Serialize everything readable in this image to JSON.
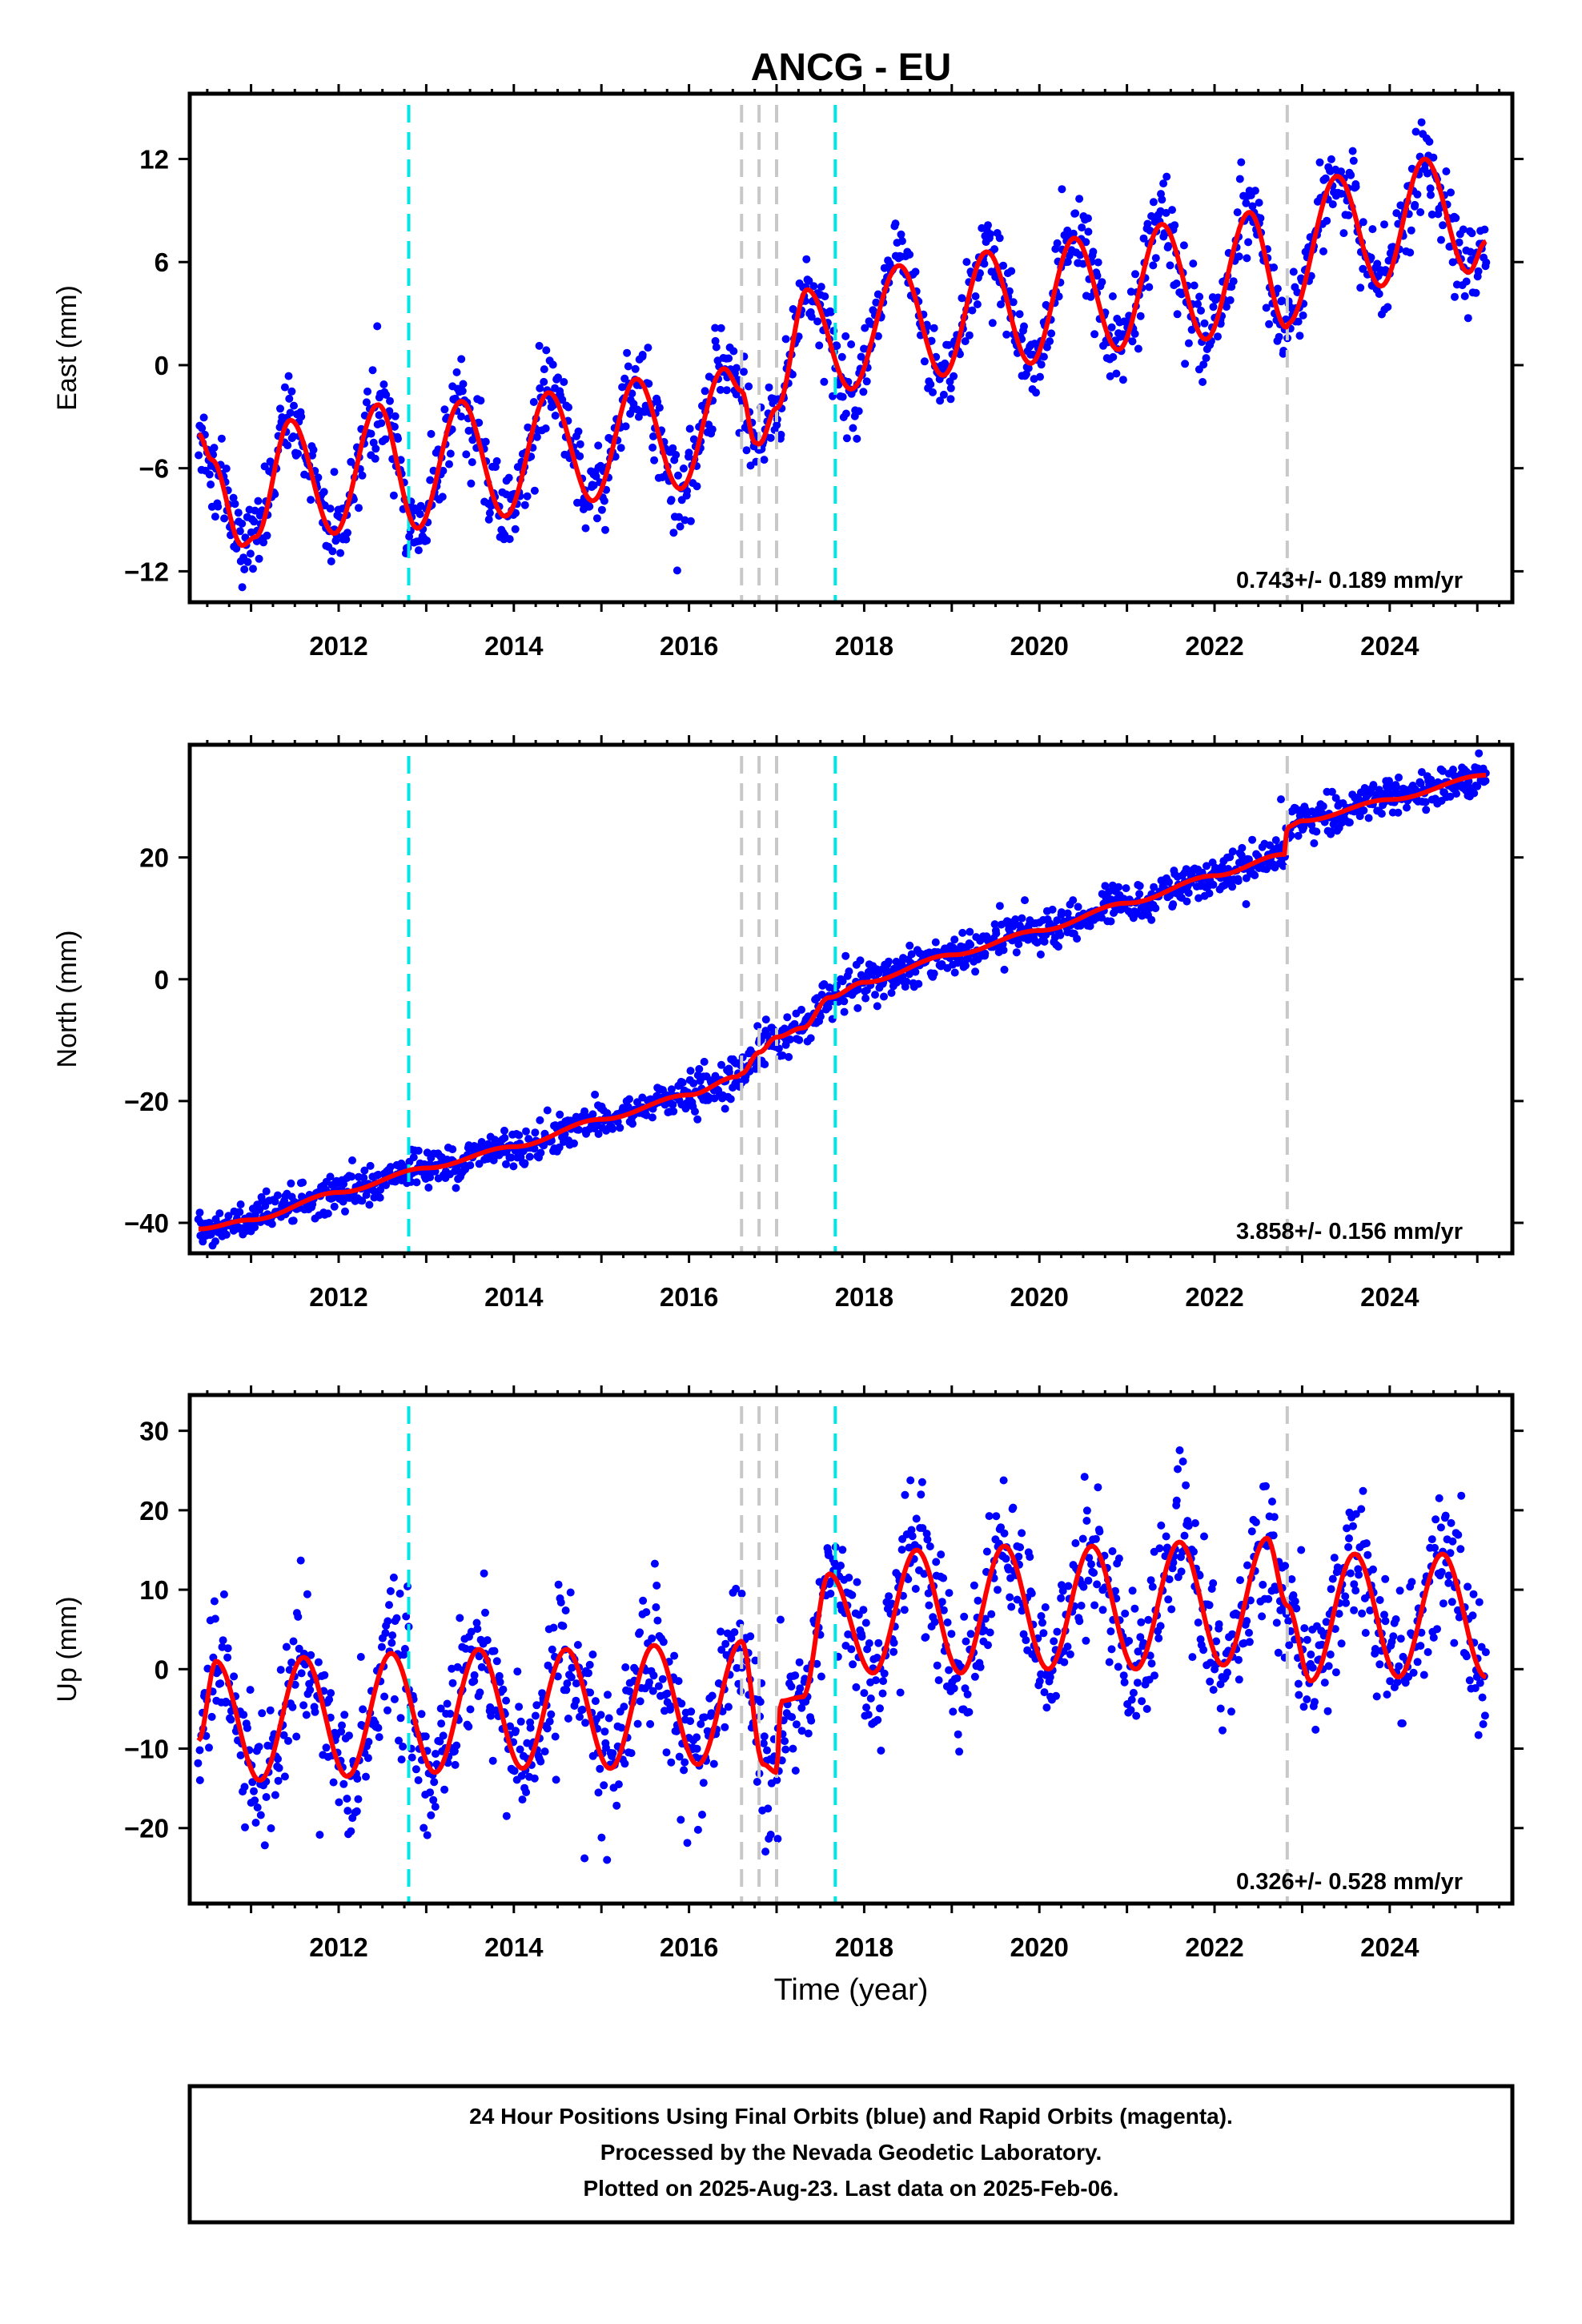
{
  "title": "ANCG - EU",
  "xlabel": "Time (year)",
  "footer": {
    "line1": "24 Hour Positions Using Final Orbits (blue) and Rapid Orbits (magenta).",
    "line2": "Processed by the Nevada Geodetic Laboratory.",
    "line3": "Plotted on 2025-Aug-23. Last data on 2025-Feb-06."
  },
  "colors": {
    "data": "#0000ff",
    "model": "#ff0000",
    "equipment_change": "#00e5e5",
    "event": "#c8c8c8"
  },
  "chart_data": [
    {
      "type": "scatter",
      "title": "ANCG - EU",
      "xlabel": "",
      "ylabel": "East (mm)",
      "xlim": [
        2010.3,
        2025.4
      ],
      "ylim": [
        -13.8,
        15.8
      ],
      "xticks": [
        2012,
        2014,
        2016,
        2018,
        2020,
        2022,
        2024
      ],
      "yticks": [
        -12,
        -6,
        0,
        6,
        12
      ],
      "velocity": "0.743+/- 0.189 mm/yr",
      "cyan_lines": [
        2012.8,
        2017.67
      ],
      "grey_lines": [
        2016.6,
        2016.8,
        2017.0,
        2022.83
      ],
      "model_keypoints": [
        [
          2010.4,
          -4
        ],
        [
          2010.55,
          -5.5
        ],
        [
          2010.9,
          -10.5
        ],
        [
          2011.05,
          -10
        ],
        [
          2011.45,
          -3.2
        ],
        [
          2011.95,
          -9.8
        ],
        [
          2012.45,
          -2.3
        ],
        [
          2012.9,
          -9.5
        ],
        [
          2013.4,
          -2.1
        ],
        [
          2013.9,
          -8.8
        ],
        [
          2014.4,
          -1.6
        ],
        [
          2014.9,
          -7.9
        ],
        [
          2015.4,
          -0.8
        ],
        [
          2015.9,
          -7.2
        ],
        [
          2016.4,
          -0.2
        ],
        [
          2016.6,
          -1.5
        ],
        [
          2016.75,
          -4.5
        ],
        [
          2016.8,
          -4.6
        ],
        [
          2017.0,
          -2.5
        ],
        [
          2017.35,
          4.4
        ],
        [
          2017.85,
          -1.4
        ],
        [
          2018.4,
          5.8
        ],
        [
          2018.9,
          -0.6
        ],
        [
          2019.4,
          6.6
        ],
        [
          2019.9,
          0.1
        ],
        [
          2020.4,
          7.4
        ],
        [
          2020.9,
          0.9
        ],
        [
          2021.4,
          8.2
        ],
        [
          2021.9,
          1.5
        ],
        [
          2022.4,
          8.9
        ],
        [
          2022.82,
          2.2
        ],
        [
          2022.83,
          2.4
        ],
        [
          2023.4,
          11.0
        ],
        [
          2023.9,
          4.6
        ],
        [
          2024.4,
          12.0
        ],
        [
          2024.9,
          5.4
        ],
        [
          2025.1,
          7.2
        ]
      ]
    },
    {
      "type": "scatter",
      "xlabel": "",
      "ylabel": "North (mm)",
      "xlim": [
        2010.3,
        2025.4
      ],
      "ylim": [
        -45,
        38.5
      ],
      "xticks": [
        2012,
        2014,
        2016,
        2018,
        2020,
        2022,
        2024
      ],
      "yticks": [
        -40,
        -20,
        0,
        20
      ],
      "velocity": "3.858+/- 0.156 mm/yr",
      "cyan_lines": [
        2012.8,
        2017.67
      ],
      "grey_lines": [
        2016.6,
        2016.8,
        2017.0,
        2022.83
      ],
      "model_keypoints": [
        [
          2010.4,
          -41
        ],
        [
          2011.0,
          -39.5
        ],
        [
          2012.0,
          -35
        ],
        [
          2013.0,
          -31
        ],
        [
          2014.0,
          -27.5
        ],
        [
          2015.0,
          -23
        ],
        [
          2016.0,
          -19
        ],
        [
          2016.55,
          -16
        ],
        [
          2016.6,
          -15.5
        ],
        [
          2016.8,
          -12
        ],
        [
          2017.0,
          -9.5
        ],
        [
          2017.3,
          -8
        ],
        [
          2017.6,
          -3
        ],
        [
          2018.0,
          -0.5
        ],
        [
          2019.0,
          4
        ],
        [
          2020.0,
          8
        ],
        [
          2021.0,
          12.5
        ],
        [
          2022.0,
          17
        ],
        [
          2022.8,
          20.5
        ],
        [
          2022.83,
          25
        ],
        [
          2023.0,
          26
        ],
        [
          2024.0,
          29.5
        ],
        [
          2025.1,
          33.5
        ]
      ]
    },
    {
      "type": "scatter",
      "xlabel": "Time (year)",
      "ylabel": "Up (mm)",
      "xlim": [
        2010.3,
        2025.4
      ],
      "ylim": [
        -29.5,
        34.5
      ],
      "xticks": [
        2012,
        2014,
        2016,
        2018,
        2020,
        2022,
        2024
      ],
      "yticks": [
        -20,
        -10,
        0,
        10,
        20,
        30
      ],
      "velocity": "0.326+/- 0.528 mm/yr",
      "cyan_lines": [
        2012.8,
        2017.67
      ],
      "grey_lines": [
        2016.6,
        2016.8,
        2017.0,
        2022.83
      ],
      "model_keypoints": [
        [
          2010.4,
          -9
        ],
        [
          2010.6,
          1
        ],
        [
          2011.1,
          -14
        ],
        [
          2011.6,
          1.5
        ],
        [
          2012.1,
          -13.5
        ],
        [
          2012.6,
          2
        ],
        [
          2013.1,
          -13
        ],
        [
          2013.6,
          2.5
        ],
        [
          2014.1,
          -12.5
        ],
        [
          2014.6,
          2.5
        ],
        [
          2015.1,
          -12.5
        ],
        [
          2015.6,
          3
        ],
        [
          2016.1,
          -12
        ],
        [
          2016.6,
          3.5
        ],
        [
          2016.85,
          -12
        ],
        [
          2017.0,
          -13
        ],
        [
          2017.05,
          -4
        ],
        [
          2017.3,
          -3.5
        ],
        [
          2017.6,
          12
        ],
        [
          2018.1,
          -0.5
        ],
        [
          2018.6,
          15
        ],
        [
          2019.1,
          -0.5
        ],
        [
          2019.6,
          15.5
        ],
        [
          2020.1,
          0
        ],
        [
          2020.6,
          15.5
        ],
        [
          2021.1,
          0
        ],
        [
          2021.6,
          16
        ],
        [
          2022.1,
          0.5
        ],
        [
          2022.6,
          16.5
        ],
        [
          2022.83,
          8
        ],
        [
          2023.1,
          -1.5
        ],
        [
          2023.6,
          14.5
        ],
        [
          2024.1,
          -1
        ],
        [
          2024.6,
          14.5
        ],
        [
          2025.1,
          -1
        ]
      ]
    }
  ]
}
